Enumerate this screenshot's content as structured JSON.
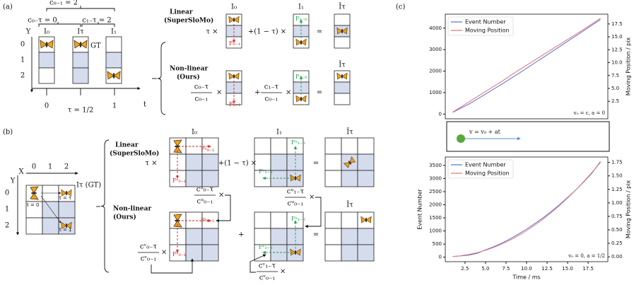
{
  "panel_a": {
    "label": "(a)",
    "c01": "c₀₋₁ = 2",
    "c0t": "c₀₋τ = 0",
    "c1t": "c₁₋τ = 2",
    "y_axis": "Y",
    "y_ticks": [
      "0",
      "1",
      "2"
    ],
    "frames": [
      "I₀",
      "Iτ",
      "I₁"
    ],
    "gt": "GT",
    "t_axis": "t",
    "t_ticks": [
      "0",
      "τ = 1/2",
      "1"
    ]
  },
  "panel_a_methods": {
    "frames": [
      "I₀",
      "I₁",
      "Îτ"
    ],
    "linear": {
      "name": [
        "Linear",
        "(SuperSloMo)"
      ],
      "coef0": "τ ×",
      "coef1": "+(1 − τ) ×",
      "eq": "=",
      "flow01": "F₀₋₁",
      "flow10": "F₁₋₀"
    },
    "nonlinear": {
      "name": [
        "Non-linear",
        "(Ours)"
      ],
      "coef0_num": "c₀₋τ",
      "coef0_den": "c₀₋₁",
      "times": "×",
      "plus": "+",
      "coef1_num": "c₁₋τ",
      "coef1_den": "c₀₋₁",
      "eq": "="
    }
  },
  "panel_b": {
    "label": "(b)",
    "x_axis": "X",
    "x_ticks": [
      "0",
      "1",
      "2"
    ],
    "y_axis": "Y",
    "y_ticks": [
      "0",
      "1",
      "2"
    ],
    "gt": "Iτ (GT)",
    "times": [
      "t = 0",
      "t = τ",
      "t = 1"
    ],
    "frames": [
      "I₀",
      "I₁",
      "Îτ"
    ],
    "linear": {
      "name": [
        "Linear",
        "(SuperSloMo)"
      ],
      "coef0": "τ ×",
      "coef1": "+(1 − τ) ×",
      "eq": "=",
      "flows": [
        "Fᵘ₀₋₁",
        "Fᵛ₀₋₁",
        "Fᵘ₁₋₀",
        "Fᵛ₁₋₀"
      ]
    },
    "nonlinear": {
      "name": [
        "Non-linear",
        "(Ours)"
      ],
      "plus": "+",
      "eq": "=",
      "times": "×",
      "cu0t": "cᵘ₀₋τ",
      "cu01": "cᵘ₀₋₁",
      "cv0t": "cᵛ₀₋τ",
      "cv01": "cᵛ₀₋₁",
      "cu1t": "cᵘ₁₋τ",
      "cv1t": "cᵛ₁₋τ"
    }
  },
  "panel_c": {
    "label": "(c)",
    "motion": "v = v₀ + at"
  },
  "chart_data": [
    {
      "type": "line",
      "x": [
        1,
        3,
        5,
        7,
        9,
        11,
        13,
        15,
        17,
        19
      ],
      "series": [
        {
          "name": "Event Number",
          "color": "#5b6fd6",
          "values": [
            80,
            470,
            930,
            1400,
            1880,
            2380,
            2880,
            3390,
            3890,
            4400
          ]
        },
        {
          "name": "Moving Position",
          "color": "#e57373",
          "axis": "y2",
          "values": [
            0.4,
            2.4,
            4.4,
            6.4,
            8.5,
            10.5,
            12.5,
            14.5,
            16.5,
            18.6
          ]
        }
      ],
      "xlim": [
        0.1,
        19.9
      ],
      "ylim": [
        -220,
        4650
      ],
      "yticks": [
        0,
        1000,
        2000,
        3000,
        4000
      ],
      "y2lim": [
        -0.9,
        19.4
      ],
      "y2ticks": [
        2.5,
        {
          "value": 5,
          "label": "5.0"
        },
        7.5,
        {
          "value": 10,
          "label": "10.0"
        },
        12.5,
        {
          "value": 15,
          "label": "15.0"
        },
        17.5
      ],
      "y2label": "Moving Position / pix",
      "annotation": "v₀ = c, a = 0",
      "legend": "upper left"
    },
    {
      "type": "line",
      "x": [
        1,
        2,
        3,
        4,
        5,
        6,
        7,
        8,
        9,
        10,
        11,
        12,
        13,
        14,
        15,
        16,
        17,
        18,
        19
      ],
      "series": [
        {
          "name": "Event Number",
          "color": "#5b6fd6",
          "values": [
            30,
            50,
            80,
            150,
            280,
            400,
            540,
            700,
            880,
            1070,
            1280,
            1500,
            1740,
            2000,
            2280,
            2570,
            2880,
            3220,
            3650
          ]
        },
        {
          "name": "Moving Position",
          "color": "#e57373",
          "axis": "y2",
          "values": [
            0.005,
            0.019,
            0.044,
            0.078,
            0.121,
            0.175,
            0.238,
            0.31,
            0.393,
            0.485,
            0.587,
            0.698,
            0.819,
            0.95,
            1.091,
            1.241,
            1.401,
            1.571,
            1.75
          ]
        }
      ],
      "xlim": [
        0.1,
        19.9
      ],
      "xticks": [
        2.5,
        {
          "value": 5,
          "label": "5.0"
        },
        7.5,
        {
          "value": 10,
          "label": "10.0"
        },
        12.5,
        {
          "value": 15,
          "label": "15.0"
        },
        17.5
      ],
      "ylim": [
        -170,
        3820
      ],
      "yticks": [
        0,
        500,
        1000,
        1500,
        2000,
        2500,
        3000,
        3500
      ],
      "y2lim": [
        -0.09,
        1.85
      ],
      "y2ticks": [
        {
          "value": 0,
          "label": "0.00"
        },
        0.25,
        {
          "value": 0.5,
          "label": "0.50"
        },
        0.75,
        {
          "value": 1,
          "label": "1.00"
        },
        1.25,
        {
          "value": 1.5,
          "label": "1.50"
        },
        1.75
      ],
      "xlabel": "Time / ms",
      "ylabel": "Event Number",
      "y2label": "Moving Position / pix",
      "annotation": "v₀ = 0, a = 1/2",
      "legend": "upper left"
    }
  ]
}
